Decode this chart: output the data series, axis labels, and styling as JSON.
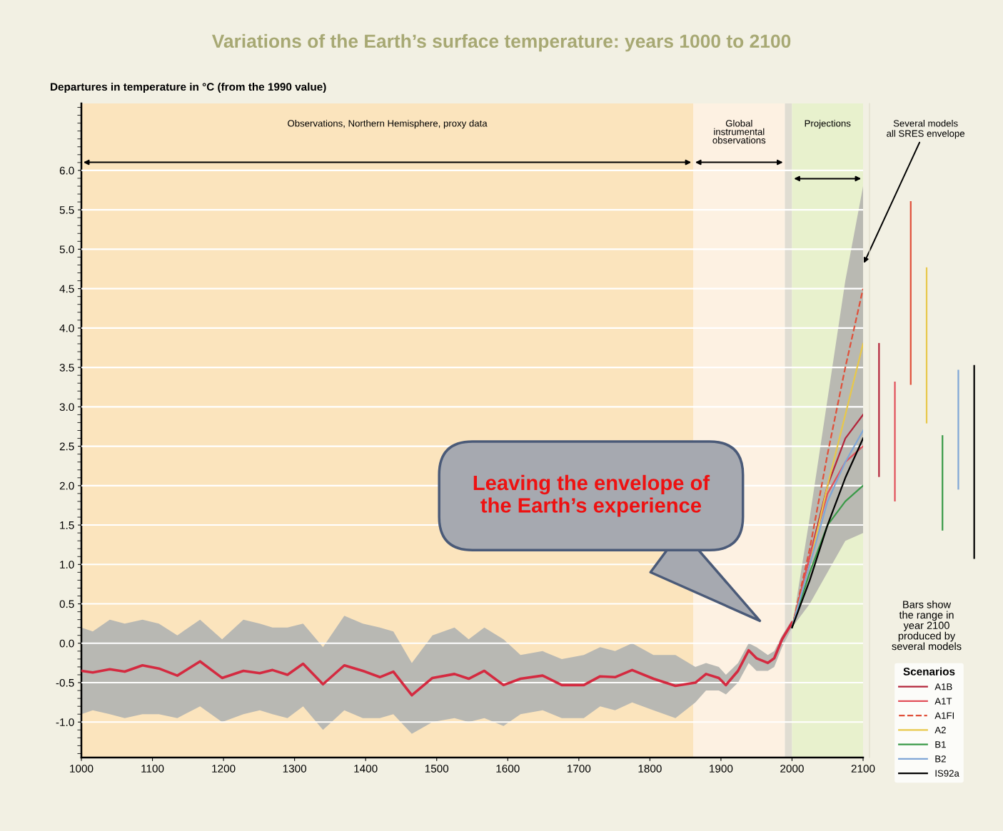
{
  "chart_data": [
    {
      "type": "line",
      "title": "Variations of the Earth’s surface temperature: years 1000 to 2100",
      "ylabel": "Departures in temperature in °C (from the 1990 value)",
      "xlim": [
        1000,
        2100
      ],
      "xticks": [
        1000,
        1100,
        1200,
        1300,
        1400,
        1500,
        1600,
        1700,
        1800,
        1900,
        2000,
        2100
      ],
      "ylim": [
        -1.45,
        6.85
      ],
      "yticks": [
        {
          "value": -1,
          "label": "-1.0"
        },
        -0.5,
        {
          "value": 0,
          "label": "0.0"
        },
        0.5,
        {
          "value": 1,
          "label": "1.0"
        },
        1.5,
        {
          "value": 2,
          "label": "2.0"
        },
        2.5,
        {
          "value": 3,
          "label": "3.0"
        },
        3.5,
        {
          "value": 4,
          "label": "4.0"
        },
        4.5,
        {
          "value": 5,
          "label": "5.0"
        },
        5.5,
        {
          "value": 6,
          "label": "6.0"
        }
      ],
      "grid": "y",
      "legend": "bottom right",
      "legend_title": "Scenarios",
      "bands": [
        {
          "axis": "x",
          "from": 1000,
          "to": 1861,
          "label": "Observations, Northern Hemisphere, proxy data",
          "color": "#fbe4bd"
        },
        {
          "axis": "x",
          "from": 1861,
          "to": 1990,
          "label": "Global\ninstrumental\nobservations",
          "color": "#fdf1e2"
        },
        {
          "axis": "x",
          "from": 1990,
          "to": 2000,
          "label": null,
          "color": "#e0ddd2"
        },
        {
          "axis": "x",
          "from": 2000,
          "to": 2100,
          "label": "Projections",
          "color": "#e8f1cd"
        }
      ],
      "series": [
        {
          "color": "#d42a40",
          "x": [
            1000,
            1016,
            1040,
            1061,
            1086,
            1109,
            1135,
            1167,
            1198,
            1228,
            1251,
            1269,
            1290,
            1312,
            1340,
            1370,
            1396,
            1420,
            1439,
            1465,
            1494,
            1525,
            1545,
            1567,
            1594,
            1618,
            1649,
            1676,
            1707,
            1730,
            1751,
            1775,
            1805,
            1836,
            1864,
            1879,
            1897,
            1907,
            1924,
            1939,
            1950,
            1966,
            1975,
            1986,
            2000
          ],
          "values": [
            -0.35,
            -0.37,
            -0.33,
            -0.36,
            -0.28,
            -0.32,
            -0.41,
            -0.23,
            -0.44,
            -0.35,
            -0.38,
            -0.34,
            -0.4,
            -0.26,
            -0.52,
            -0.28,
            -0.35,
            -0.43,
            -0.36,
            -0.66,
            -0.44,
            -0.39,
            -0.45,
            -0.35,
            -0.53,
            -0.45,
            -0.41,
            -0.53,
            -0.53,
            -0.42,
            -0.43,
            -0.34,
            -0.45,
            -0.54,
            -0.5,
            -0.39,
            -0.44,
            -0.53,
            -0.35,
            -0.09,
            -0.19,
            -0.25,
            -0.19,
            0.05,
            0.26
          ]
        },
        {
          "color": "#b8b8b3",
          "x": [
            1000,
            1016,
            1040,
            1061,
            1086,
            1109,
            1135,
            1167,
            1198,
            1228,
            1251,
            1269,
            1290,
            1312,
            1340,
            1370,
            1396,
            1420,
            1439,
            1465,
            1494,
            1525,
            1545,
            1567,
            1594,
            1618,
            1649,
            1676,
            1707,
            1730,
            1751,
            1775,
            1805,
            1836,
            1864,
            1879,
            1897,
            1907,
            1924,
            1939,
            1950,
            1966,
            1975,
            1986,
            2000
          ],
          "values": [
            null,
            null,
            null,
            null,
            null,
            null,
            null,
            null,
            null,
            null,
            null,
            null,
            null,
            null,
            null,
            null,
            null,
            null,
            null,
            null,
            null,
            null,
            null,
            null,
            null,
            null,
            null,
            null,
            null,
            null,
            null,
            null,
            null,
            null,
            null,
            null,
            null,
            null,
            null,
            null,
            null,
            null,
            null,
            null,
            null
          ],
          "upper": [
            0.2,
            0.15,
            0.3,
            0.25,
            0.3,
            0.25,
            0.1,
            0.3,
            0.05,
            0.3,
            0.25,
            0.2,
            0.2,
            0.25,
            -0.05,
            0.35,
            0.25,
            0.2,
            0.15,
            -0.25,
            0.1,
            0.2,
            0.05,
            0.2,
            0.05,
            -0.15,
            -0.1,
            -0.2,
            -0.15,
            -0.05,
            -0.1,
            0.0,
            -0.15,
            -0.15,
            -0.3,
            -0.25,
            -0.3,
            -0.4,
            -0.25,
            0.0,
            -0.05,
            -0.15,
            -0.1,
            0.1,
            0.3
          ],
          "lower": [
            -0.9,
            -0.85,
            -0.9,
            -0.95,
            -0.9,
            -0.9,
            -0.95,
            -0.8,
            -1.0,
            -0.9,
            -0.85,
            -0.9,
            -0.95,
            -0.8,
            -1.1,
            -0.85,
            -0.95,
            -0.95,
            -0.9,
            -1.15,
            -1.0,
            -0.95,
            -1.0,
            -0.95,
            -1.05,
            -0.9,
            -0.85,
            -0.95,
            -0.95,
            -0.8,
            -0.85,
            -0.75,
            -0.85,
            -0.95,
            -0.75,
            -0.6,
            -0.6,
            -0.65,
            -0.5,
            -0.25,
            -0.35,
            -0.35,
            -0.3,
            -0.05,
            0.2
          ]
        },
        {
          "color": "#b9b9b2",
          "x": [
            2000,
            2025,
            2050,
            2075,
            2100
          ],
          "values": [
            null,
            null,
            null,
            null,
            null
          ],
          "lower": [
            0.2,
            0.5,
            0.9,
            1.3,
            1.4
          ],
          "upper": [
            0.2,
            1.6,
            3.1,
            4.6,
            5.8
          ]
        },
        {
          "name": "A1B",
          "color": "#b3243a",
          "x": [
            2000,
            2025,
            2050,
            2075,
            2100
          ],
          "values": [
            0.2,
            1.1,
            2.0,
            2.6,
            2.9
          ]
        },
        {
          "name": "A1T",
          "color": "#e2505a",
          "x": [
            2000,
            2025,
            2050,
            2075,
            2100
          ],
          "values": [
            0.2,
            1.1,
            1.9,
            2.3,
            2.5
          ]
        },
        {
          "name": "A1FI",
          "color": "#e0503a",
          "line_style": "dashed",
          "x": [
            2000,
            2025,
            2050,
            2075,
            2100
          ],
          "values": [
            0.2,
            1.2,
            2.4,
            3.5,
            4.5
          ]
        },
        {
          "name": "A2",
          "color": "#e8c84a",
          "x": [
            2000,
            2025,
            2050,
            2075,
            2100
          ],
          "values": [
            0.2,
            1.0,
            2.0,
            2.9,
            3.8
          ]
        },
        {
          "name": "B1",
          "color": "#3a9a48",
          "x": [
            2000,
            2025,
            2050,
            2075,
            2100
          ],
          "values": [
            0.2,
            0.9,
            1.5,
            1.8,
            2.0
          ]
        },
        {
          "name": "B2",
          "color": "#7fa6d6",
          "x": [
            2000,
            2025,
            2050,
            2075,
            2100
          ],
          "values": [
            0.2,
            1.0,
            1.8,
            2.3,
            2.7
          ]
        },
        {
          "name": "IS92a",
          "color": "#000000",
          "x": [
            2000,
            2025,
            2050,
            2075,
            2100
          ],
          "values": [
            0.2,
            0.8,
            1.5,
            2.1,
            2.6
          ]
        }
      ],
      "annotations": [
        "Leaving the envelope of\nthe Earth’s experience",
        {
          "text": "Several models\nall SRES envelope",
          "x": 2100,
          "y": 4.8
        }
      ]
    },
    {
      "type": "bar",
      "categories": [
        null,
        null,
        null,
        null,
        null,
        null,
        null
      ],
      "base": [
        2.11,
        1.8,
        3.28,
        2.79,
        1.43,
        1.95,
        1.07
      ],
      "values": [
        1.7,
        1.52,
        2.33,
        1.98,
        1.21,
        1.52,
        2.46
      ],
      "colors": [
        "#b3243a",
        "#e2505a",
        "#e0503a",
        "#e8c84a",
        "#3a9a48",
        "#7fa6d6",
        "#000000"
      ],
      "ylim": [
        -1.45,
        6.85
      ],
      "tick_labels": false,
      "annotations": [
        "Bars show\nthe range in\nyear 2100\nproduced by\nseveral models"
      ]
    }
  ]
}
